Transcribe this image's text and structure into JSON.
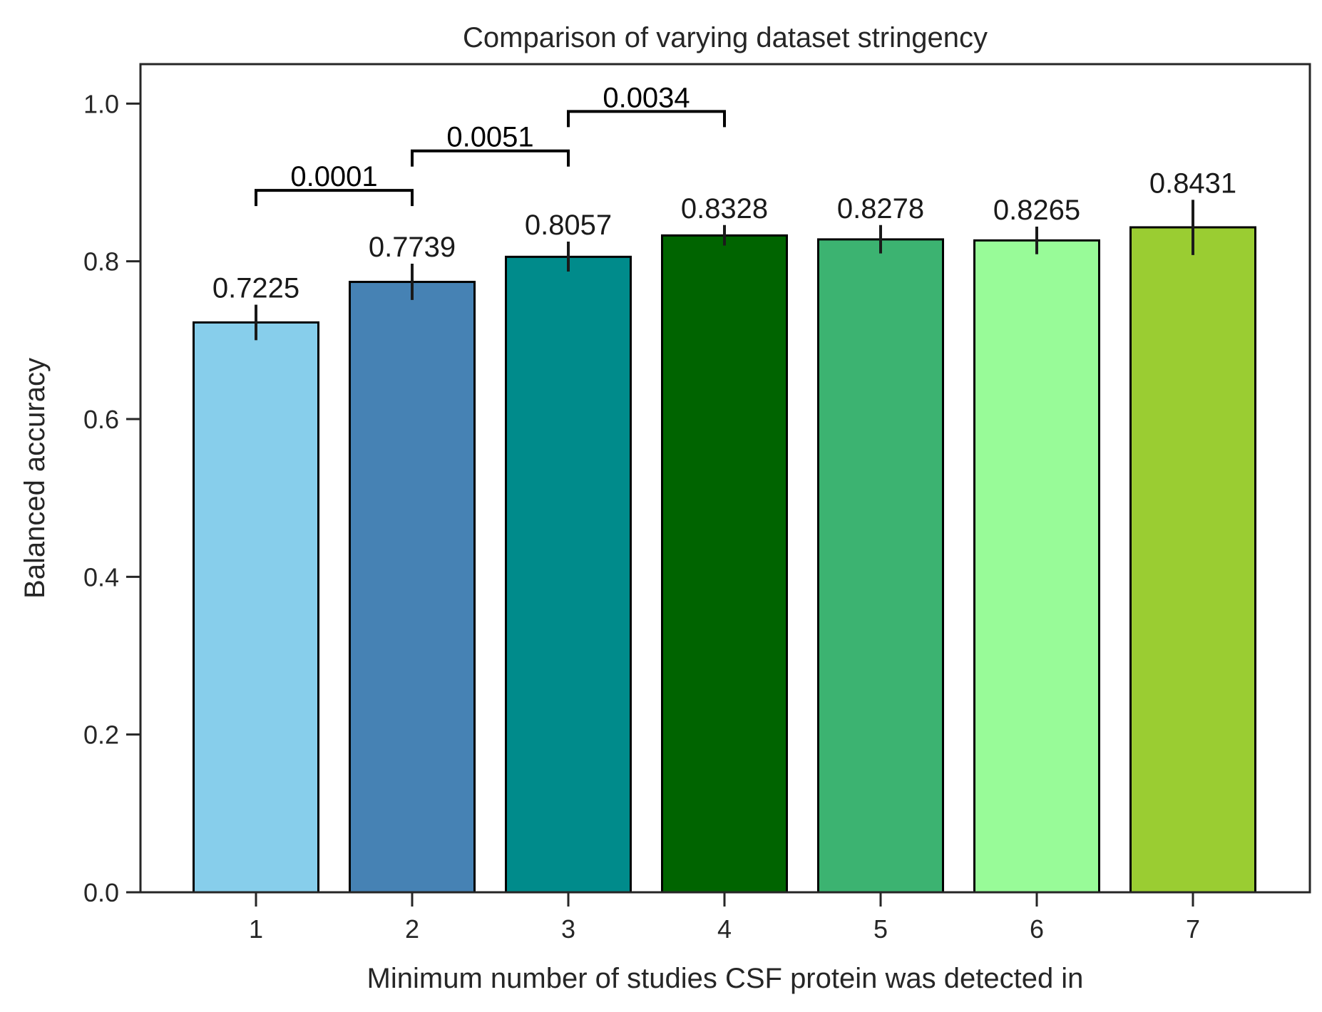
{
  "chart_data": {
    "type": "bar",
    "title": "Comparison of varying dataset stringency",
    "xlabel": "Minimum number of studies CSF protein was detected in",
    "ylabel": "Balanced accuracy",
    "ylim": [
      0.0,
      1.05
    ],
    "yticks": [
      "0.0",
      "0.2",
      "0.4",
      "0.6",
      "0.8",
      "1.0"
    ],
    "grid": false,
    "legend": "none",
    "categories": [
      "1",
      "2",
      "3",
      "4",
      "5",
      "6",
      "7"
    ],
    "values": [
      0.7225,
      0.7739,
      0.8057,
      0.8328,
      0.8278,
      0.8265,
      0.8431
    ],
    "value_labels": [
      "0.7225",
      "0.7739",
      "0.8057",
      "0.8328",
      "0.8278",
      "0.8265",
      "0.8431"
    ],
    "error_low": [
      0.7,
      0.751,
      0.787,
      0.82,
      0.81,
      0.809,
      0.808
    ],
    "error_high": [
      0.745,
      0.797,
      0.825,
      0.846,
      0.846,
      0.844,
      0.878
    ],
    "colors": [
      "#87CEEB",
      "#4682B4",
      "#008B8B",
      "#006400",
      "#3CB371",
      "#98FB98",
      "#9ACD32"
    ],
    "significance": [
      {
        "from": "1",
        "to": "2",
        "label": "0.0001",
        "level": 0.89
      },
      {
        "from": "2",
        "to": "3",
        "label": "0.0051",
        "level": 0.94
      },
      {
        "from": "3",
        "to": "4",
        "label": "0.0034",
        "level": 0.99
      }
    ]
  }
}
